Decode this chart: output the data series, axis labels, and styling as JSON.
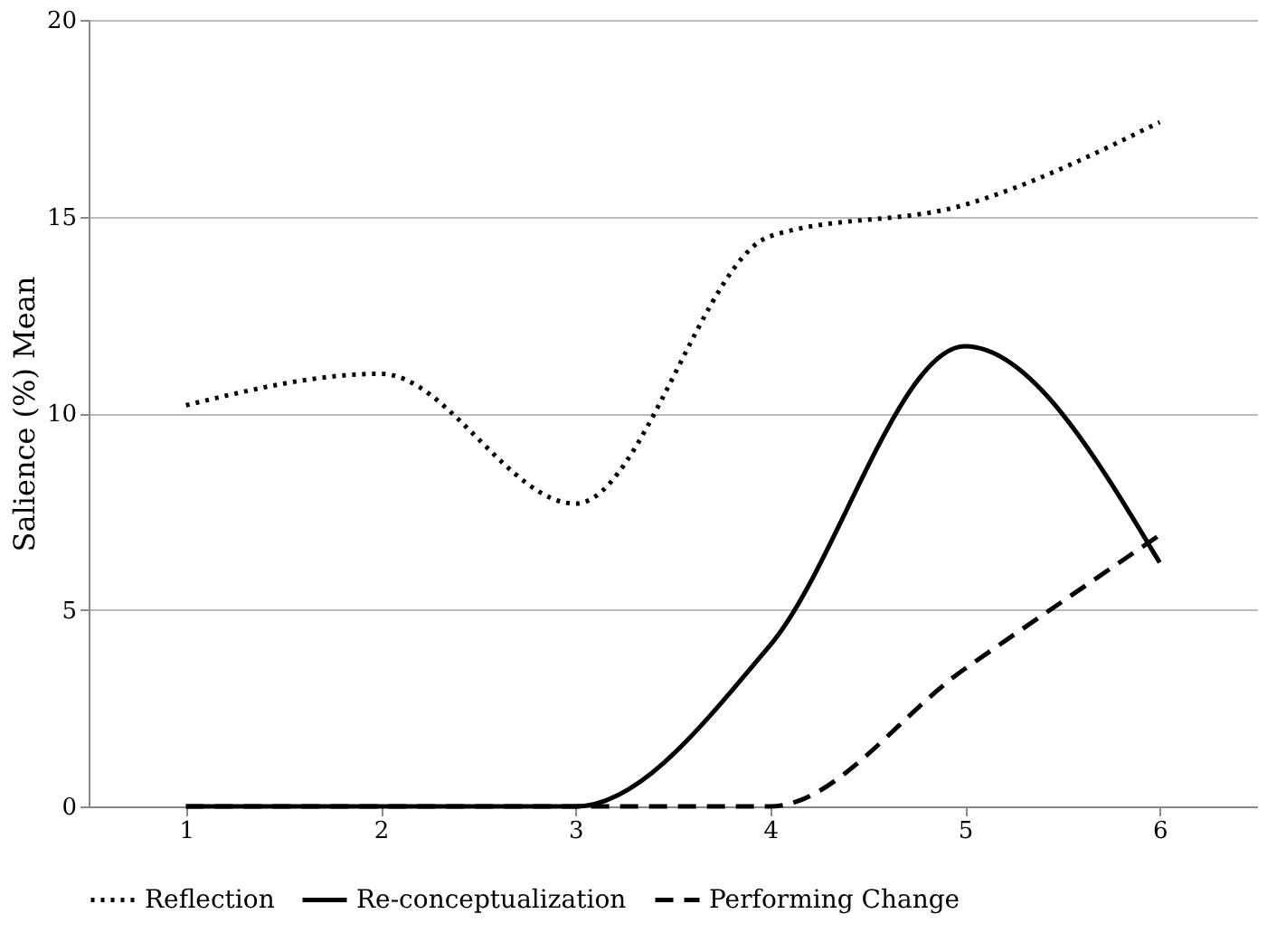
{
  "chart_data": {
    "type": "line",
    "ylabel": "Salience (%) Mean",
    "categories": [
      "1",
      "2",
      "3",
      "4",
      "5",
      "6"
    ],
    "series": [
      {
        "name": "Reflection",
        "color": "#000000",
        "line_style": "dotted",
        "values": [
          10.2,
          11.0,
          7.7,
          14.5,
          15.3,
          17.4
        ]
      },
      {
        "name": "Re-conceptualization",
        "color": "#000000",
        "line_style": "solid",
        "values": [
          0,
          0,
          0,
          4.1,
          11.7,
          6.2
        ]
      },
      {
        "name": "Performing Change",
        "color": "#000000",
        "line_style": "dashed",
        "values": [
          0,
          0,
          0,
          0,
          3.5,
          6.9
        ]
      }
    ],
    "ylim": [
      0,
      20
    ],
    "yticks": [
      0,
      5,
      10,
      15,
      20
    ],
    "grid": "y",
    "legend": "bottom",
    "marker": "none"
  }
}
